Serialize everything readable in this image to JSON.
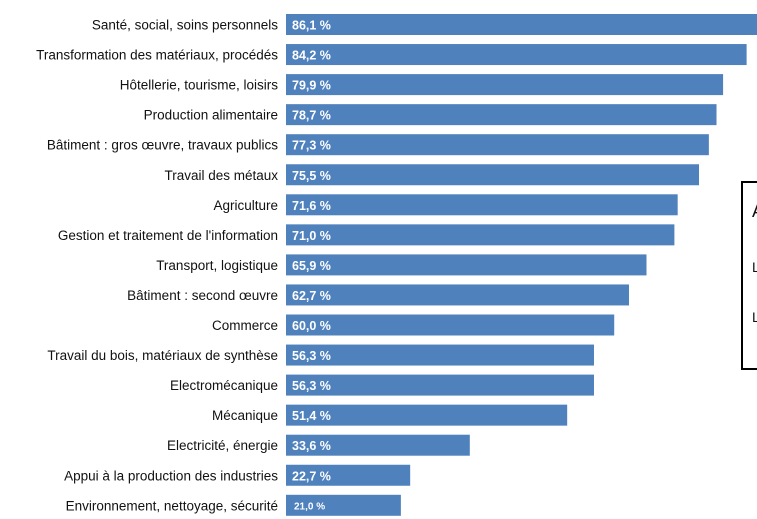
{
  "chart_data": {
    "type": "bar",
    "orientation": "horizontal",
    "categories": [
      "Santé, social, soins personnels",
      "Transformation des matériaux, procédés",
      "Hôtellerie, tourisme, loisirs",
      "Production alimentaire",
      "Bâtiment : gros œuvre, travaux publics",
      "Travail des métaux",
      "Agriculture",
      "Gestion et traitement de l'information",
      "Transport, logistique",
      "Bâtiment : second œuvre",
      "Commerce",
      "Travail du bois, matériaux de synthèse",
      "Electromécanique",
      "Mécanique",
      "Electricité, énergie",
      "Appui à la production des industries",
      "Environnement, nettoyage, sécurité"
    ],
    "values": [
      86.1,
      84.2,
      79.9,
      78.7,
      77.3,
      75.5,
      71.6,
      71.0,
      65.9,
      62.7,
      60.0,
      56.3,
      56.3,
      51.4,
      33.6,
      22.7,
      21.0
    ],
    "value_labels": [
      "86,1 %",
      "84,2 %",
      "79,9 %",
      "78,7 %",
      "77,3 %",
      "75,5 %",
      "71,6 %",
      "71,0 %",
      "65,9 %",
      "62,7 %",
      "60,0 %",
      "56,3 %",
      "56,3 %",
      "51,4 %",
      "33,6 %",
      "22,7 %",
      "21,0 %"
    ],
    "bar_color": "#4f81bd",
    "title": "",
    "xlabel": "",
    "ylabel": "",
    "xlim": [
      0,
      86.1
    ],
    "grid": false,
    "legend": {
      "placement": "right",
      "visible_text": [
        "A",
        "L",
        "L"
      ]
    }
  }
}
